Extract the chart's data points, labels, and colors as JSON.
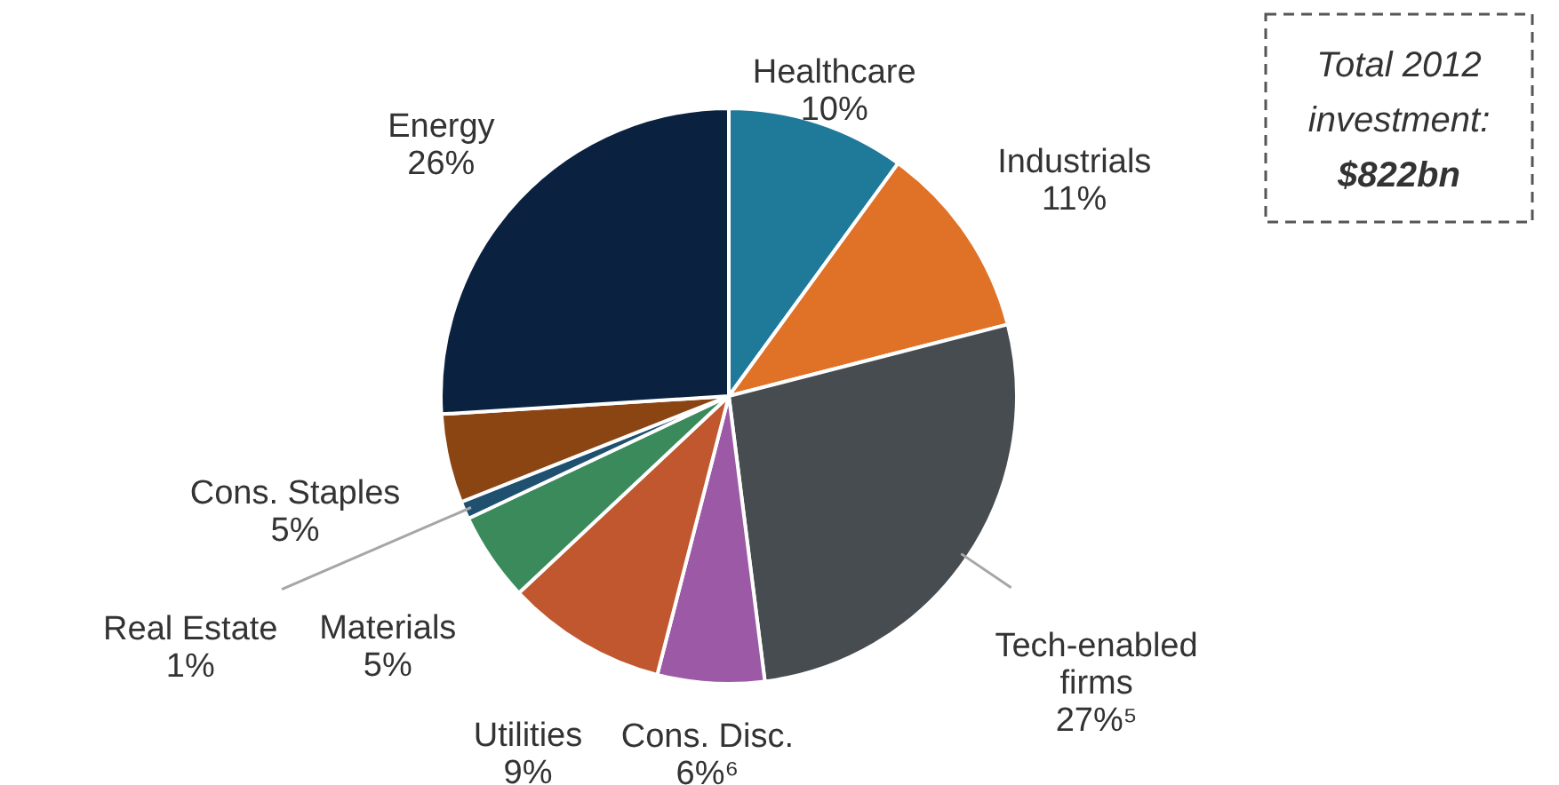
{
  "chart_data": {
    "type": "pie",
    "categories": [
      "Healthcare",
      "Industrials",
      "Tech-enabled firms",
      "Cons. Disc.",
      "Utilities",
      "Materials",
      "Real Estate",
      "Cons. Staples",
      "Energy"
    ],
    "values": [
      10,
      11,
      27,
      6,
      9,
      5,
      1,
      5,
      26
    ],
    "value_labels": [
      "10%",
      "11%",
      "27%⁵",
      "6%⁶",
      "9%",
      "5%",
      "1%",
      "5%",
      "26%"
    ],
    "colors": [
      "#1f7a99",
      "#e07228",
      "#474c51",
      "#9b59a6",
      "#c0572f",
      "#3a8a5c",
      "#1f5070",
      "#8b4513",
      "#0a2240"
    ],
    "annotations": [
      "Total 2012 investment:",
      "$822bn"
    ]
  }
}
